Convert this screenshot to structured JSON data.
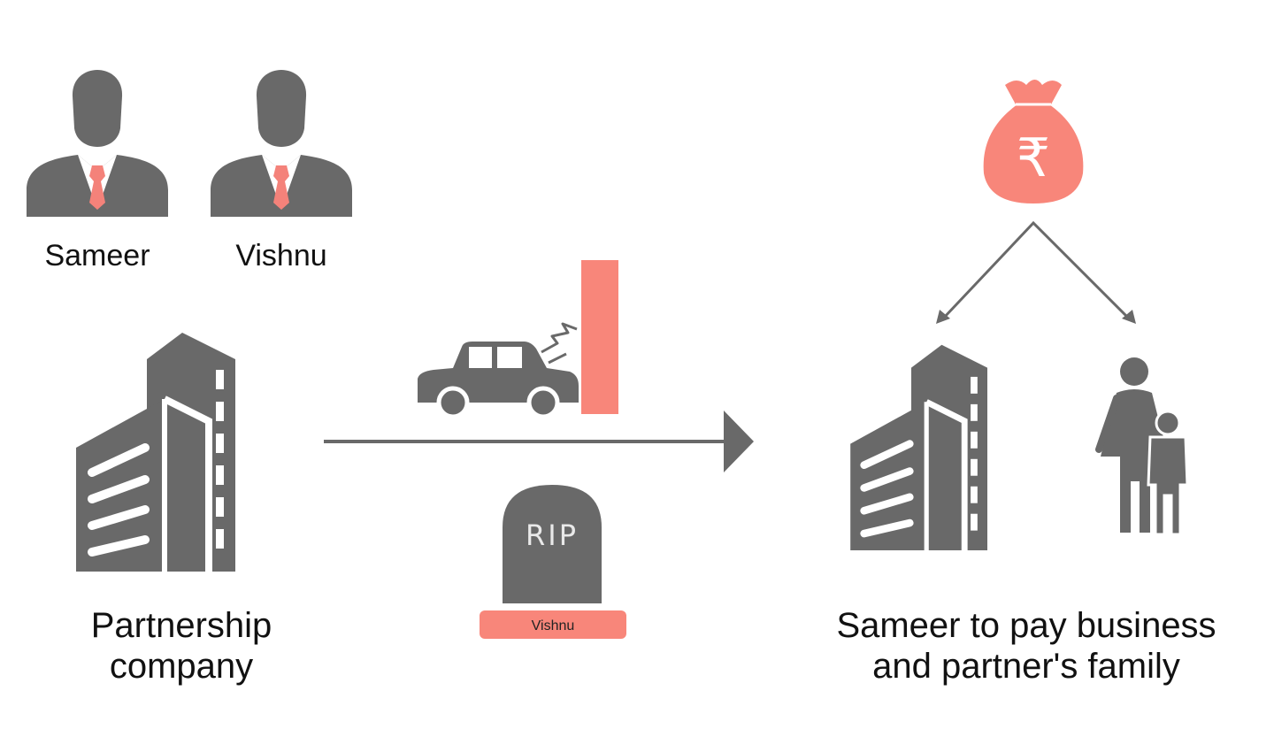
{
  "people": [
    {
      "name": "Sameer",
      "icon": "businessman-icon"
    },
    {
      "name": "Vishnu",
      "icon": "businessman-icon"
    }
  ],
  "captions": {
    "left": [
      "Partnership",
      "company"
    ],
    "right": [
      "Sameer to pay business",
      "and partner's family"
    ]
  },
  "tombstone": {
    "text": "RIP",
    "name_plate": "Vishnu"
  },
  "money_bag": {
    "symbol": "₹",
    "icon": "money-bag-icon"
  },
  "icons": {
    "building": "building-icon",
    "car_crash": "car-crash-icon",
    "wall": "wall-icon",
    "family": "mother-and-child-icon",
    "arrow": "arrow-right-icon"
  },
  "colors": {
    "icon_gray": "#696969",
    "accent": "#f8867a",
    "tie": "#f4827a",
    "text": "#111111"
  }
}
